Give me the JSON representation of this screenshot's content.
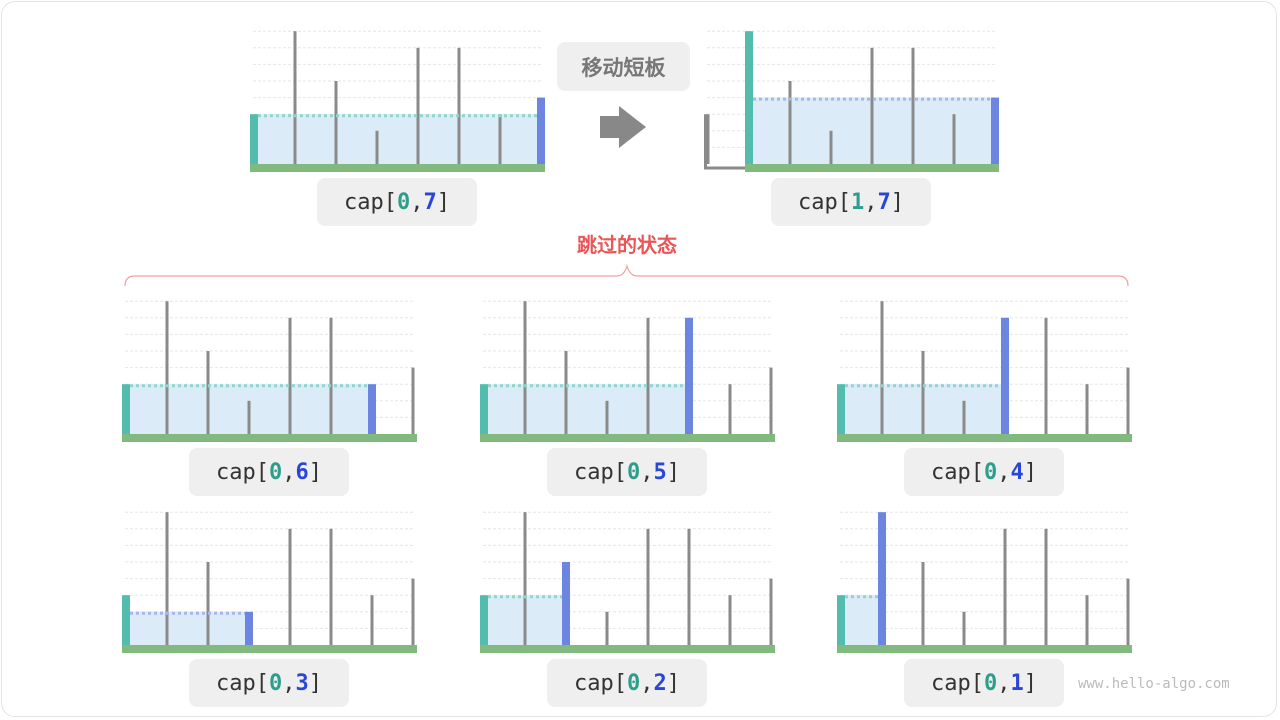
{
  "heights": [
    3,
    8,
    5,
    2,
    7,
    7,
    3,
    4
  ],
  "move_label": "移动短板",
  "skip_title": "跳过的状态",
  "watermark": "www.hello-algo.com",
  "label_prefix": "cap[",
  "label_sep": ", ",
  "label_suffix": "]",
  "colors": {
    "left": "#52bcaf",
    "right": "#6c85e0",
    "bar": "#8a8a8a",
    "ground": "#82b97e",
    "water": "#dbecf8",
    "brace": "#f0a0a0",
    "title": "#ea5656"
  },
  "panels": [
    {
      "i": 0,
      "j": 7,
      "group": "top"
    },
    {
      "i": 1,
      "j": 7,
      "group": "top"
    },
    {
      "i": 0,
      "j": 6,
      "group": "skipped"
    },
    {
      "i": 0,
      "j": 5,
      "group": "skipped"
    },
    {
      "i": 0,
      "j": 4,
      "group": "skipped"
    },
    {
      "i": 0,
      "j": 3,
      "group": "skipped"
    },
    {
      "i": 0,
      "j": 2,
      "group": "skipped"
    },
    {
      "i": 0,
      "j": 1,
      "group": "skipped"
    }
  ]
}
